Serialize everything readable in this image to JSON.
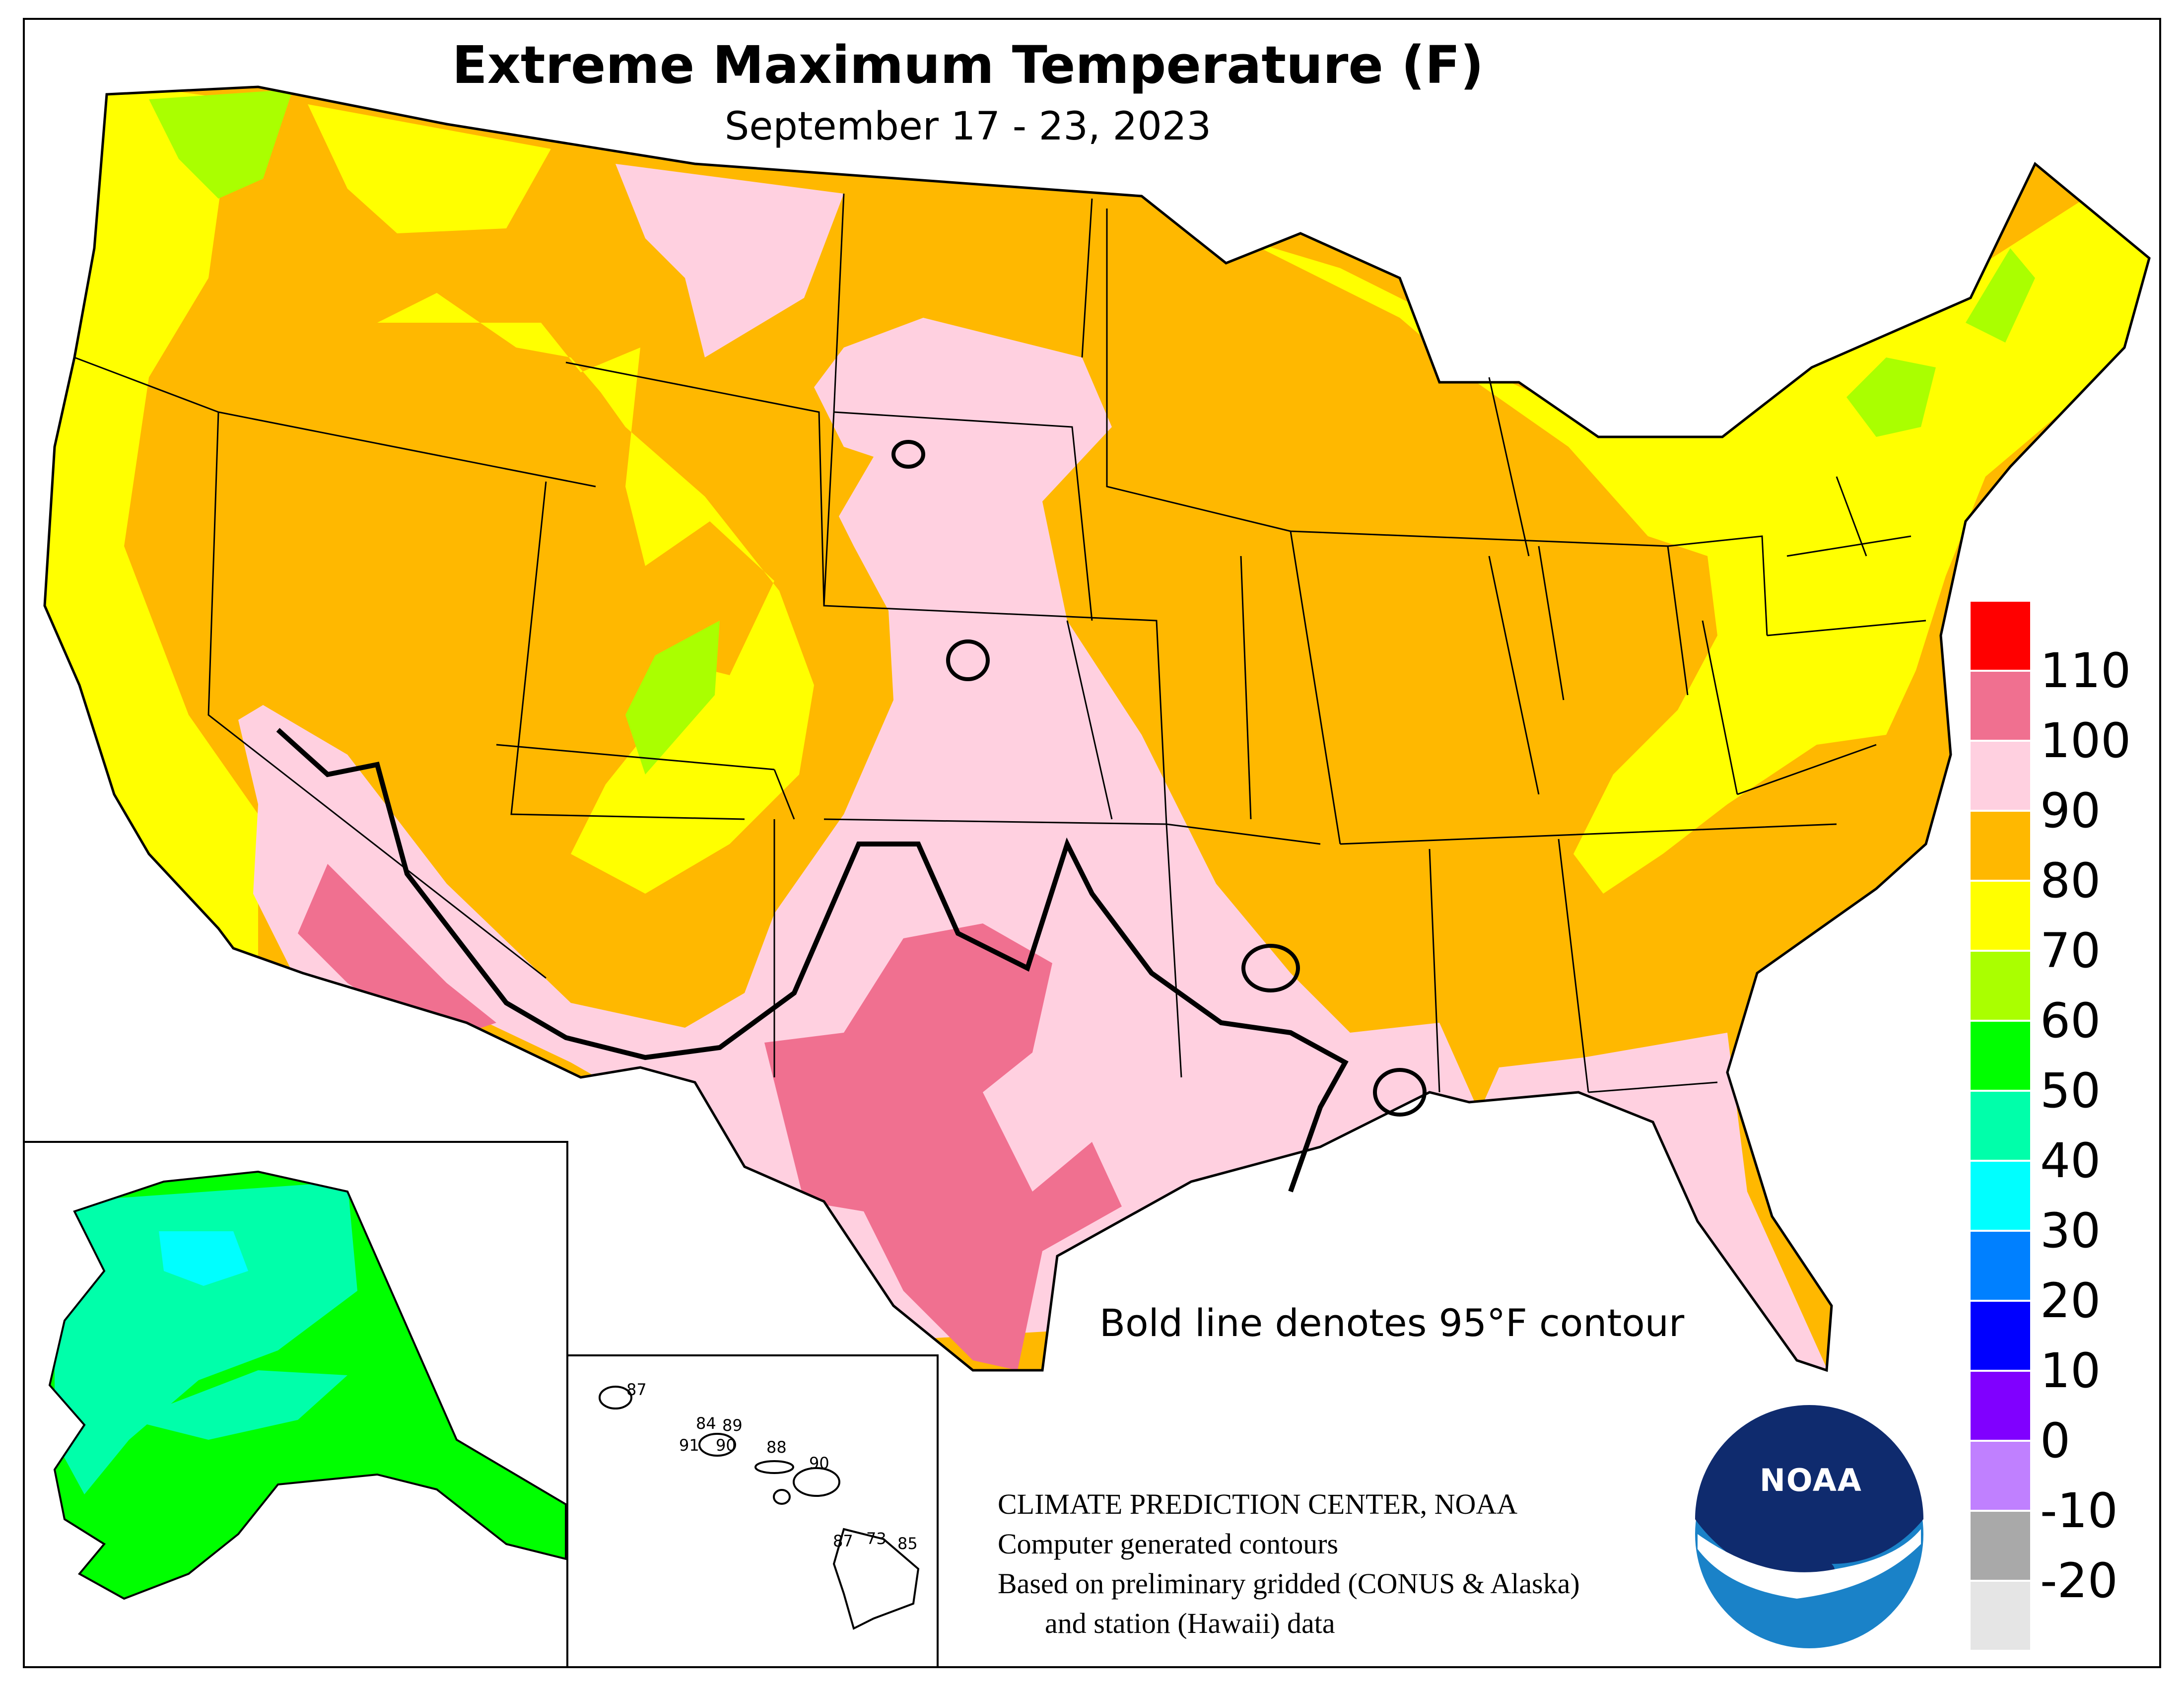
{
  "title": "Extreme Maximum Temperature (F)",
  "subtitle": "September 17 - 23, 2023",
  "contour_note": "Bold line denotes 95°F contour",
  "credits": {
    "line1": "CLIMATE PREDICTION CENTER, NOAA",
    "line2": "Computer generated contours",
    "line3": "Based on preliminary gridded (CONUS & Alaska)",
    "line4": "and station (Hawaii) data"
  },
  "logo": {
    "text": "NOAA",
    "icon": "noaa-logo-icon"
  },
  "legend": {
    "colors": [
      "#ff0000",
      "#f07090",
      "#ffd0e0",
      "#ffb800",
      "#ffff00",
      "#aaff00",
      "#00ff00",
      "#00ffaa",
      "#00ffff",
      "#0080ff",
      "#0000ff",
      "#8000ff",
      "#c080ff",
      "#a9a9a9",
      "#e5e5e5"
    ],
    "ticks": [
      "110",
      "100",
      "90",
      "80",
      "70",
      "60",
      "50",
      "40",
      "30",
      "20",
      "10",
      "0",
      "-10",
      "-20"
    ]
  },
  "hawaii_stations": [
    {
      "name": "kauai",
      "value": "87"
    },
    {
      "name": "oahu-north",
      "value": "84"
    },
    {
      "name": "oahu-northeast",
      "value": "89"
    },
    {
      "name": "oahu-west",
      "value": "91"
    },
    {
      "name": "oahu-south",
      "value": "90"
    },
    {
      "name": "molokai",
      "value": "88"
    },
    {
      "name": "maui",
      "value": "90"
    },
    {
      "name": "hawaii-west",
      "value": "87"
    },
    {
      "name": "hawaii-center",
      "value": "73"
    },
    {
      "name": "hawaii-east",
      "value": "85"
    }
  ]
}
